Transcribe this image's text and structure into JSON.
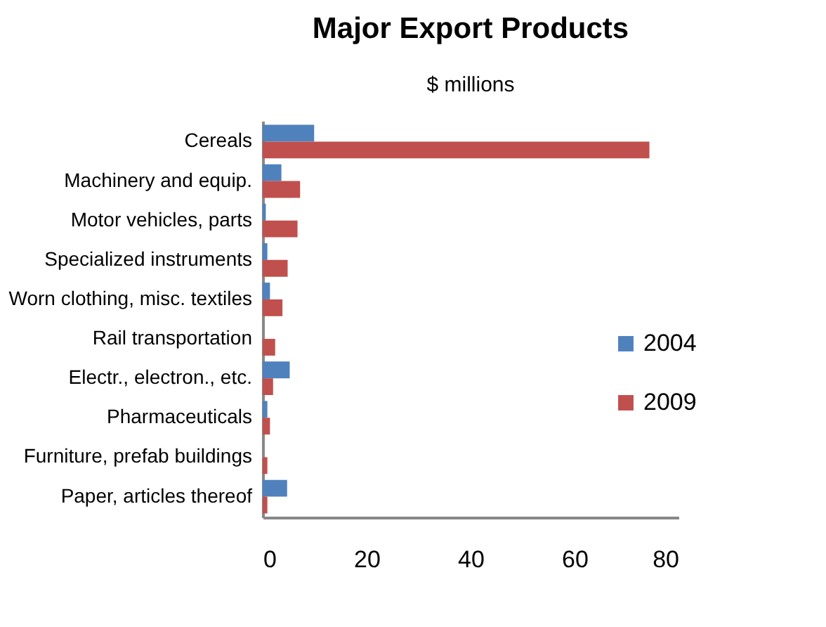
{
  "chart_data": {
    "type": "bar",
    "orientation": "horizontal",
    "title": "Major Export Products",
    "subtitle": "$ millions",
    "categories": [
      "Cereals",
      "Machinery and equip.",
      "Motor vehicles, parts",
      "Specialized instruments",
      "Worn clothing, misc. textiles",
      "Rail transportation",
      "Electr., electron., etc.",
      "Pharmaceuticals",
      "Furniture, prefab buildings",
      "Paper, articles thereof"
    ],
    "series": [
      {
        "name": "2004",
        "color": "#4f81bd",
        "values": [
          9.9,
          3.6,
          0.6,
          0.9,
          1.4,
          null,
          5.2,
          0.9,
          null,
          4.7
        ]
      },
      {
        "name": "2009",
        "color": "#c0504d",
        "values": [
          74.4,
          7.2,
          6.7,
          4.8,
          3.8,
          2.4,
          2.0,
          1.4,
          0.9,
          0.9
        ]
      }
    ],
    "xlim": [
      0,
      80
    ],
    "xticks": [
      0,
      20,
      40,
      60,
      80
    ],
    "grid": false,
    "legend": "right"
  }
}
